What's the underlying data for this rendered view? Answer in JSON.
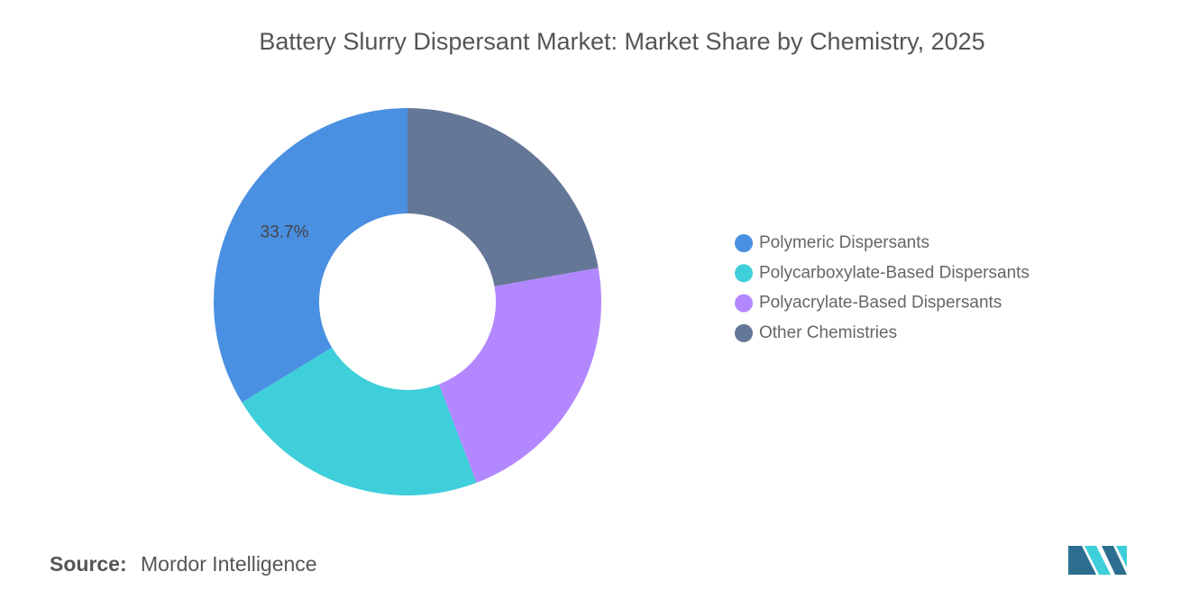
{
  "chart_data": {
    "type": "donut",
    "title": "Battery Slurry Dispersant Market: Market Share by Chemistry, 2025",
    "categories": [
      "Polymeric Dispersants",
      "Polycarboxylate-Based Dispersants",
      "Polyacrylate-Based Dispersants",
      "Other Chemistries"
    ],
    "values": [
      33.7,
      22.1,
      22.0,
      22.2
    ],
    "value_labels": [
      "33.7%",
      null,
      null,
      null
    ],
    "colors": [
      "#4a90e2",
      "#3ecfda",
      "#b388ff",
      "#657797"
    ],
    "legend": "right",
    "source_label": "Source:",
    "source": "Mordor Intelligence"
  }
}
